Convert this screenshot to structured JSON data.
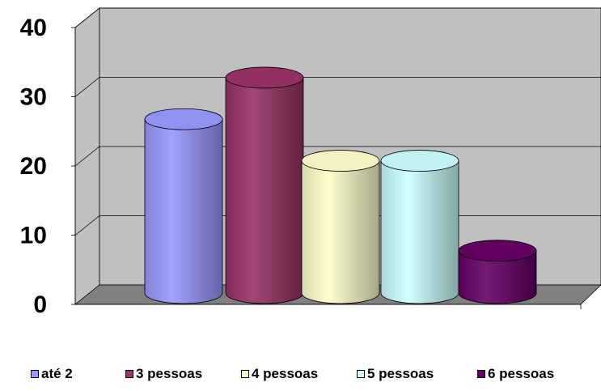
{
  "chart_data": {
    "type": "bar",
    "style": "3d-cylinder",
    "categories": [
      "até 2",
      "3 pessoas",
      "4 pessoas",
      "5 pessoas",
      "6 pessoas"
    ],
    "series": [
      {
        "name": "até 2",
        "value": 25,
        "color": "#9999ff"
      },
      {
        "name": "3 pessoas",
        "value": 31,
        "color": "#993366"
      },
      {
        "name": "4 pessoas",
        "value": 19,
        "color": "#ffffcc"
      },
      {
        "name": "5 pessoas",
        "value": 19,
        "color": "#ccffff"
      },
      {
        "name": "6 pessoas",
        "value": 6,
        "color": "#660066"
      }
    ],
    "yticks": [
      "0",
      "10",
      "20",
      "30",
      "40"
    ],
    "ylim": [
      0,
      40
    ],
    "grid": true,
    "legend_position": "bottom",
    "wall_color": "#c0c0c0",
    "floor_color": "#808080"
  }
}
